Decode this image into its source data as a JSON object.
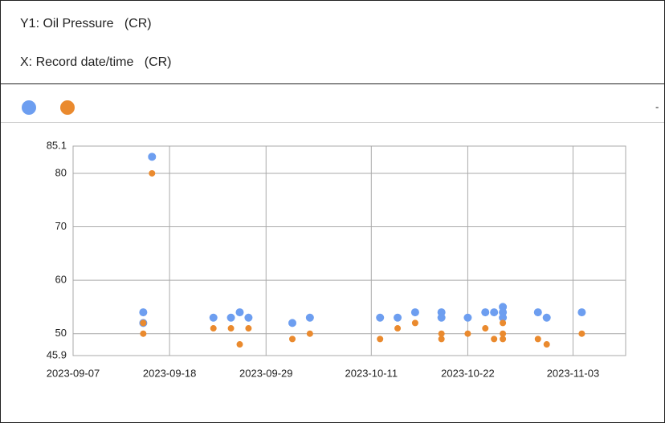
{
  "header": {
    "y_label": "Y1: Oil Pressure   (CR)",
    "x_label": "X: Record date/time   (CR)"
  },
  "legend_menu": "-",
  "chart_data": {
    "type": "scatter",
    "series": [
      {
        "color": "#6d9ef0",
        "x": [
          "2023-09-16",
          "2023-09-15",
          "2023-09-15",
          "2023-09-23",
          "2023-09-25",
          "2023-09-26",
          "2023-09-27",
          "2023-10-02",
          "2023-10-04",
          "2023-10-12",
          "2023-10-14",
          "2023-10-16",
          "2023-10-19",
          "2023-10-19",
          "2023-10-22",
          "2023-10-24",
          "2023-10-25",
          "2023-10-26",
          "2023-10-26",
          "2023-10-26",
          "2023-10-30",
          "2023-10-31",
          "2023-11-04"
        ],
        "values": [
          83.1,
          54,
          52,
          53,
          53,
          54,
          53,
          52,
          53,
          53,
          53,
          54,
          54,
          53,
          53,
          54,
          54,
          55,
          54,
          53,
          54,
          53,
          54
        ]
      },
      {
        "color": "#ea8a2e",
        "x": [
          "2023-09-16",
          "2023-09-15",
          "2023-09-15",
          "2023-09-23",
          "2023-09-25",
          "2023-09-26",
          "2023-09-27",
          "2023-10-02",
          "2023-10-04",
          "2023-10-12",
          "2023-10-14",
          "2023-10-16",
          "2023-10-19",
          "2023-10-19",
          "2023-10-22",
          "2023-10-24",
          "2023-10-25",
          "2023-10-26",
          "2023-10-26",
          "2023-10-26",
          "2023-10-30",
          "2023-10-31",
          "2023-11-04"
        ],
        "values": [
          80,
          52,
          50,
          51,
          51,
          48,
          51,
          49,
          50,
          49,
          51,
          52,
          50,
          49,
          50,
          51,
          49,
          50,
          52,
          49,
          49,
          48,
          50
        ]
      }
    ],
    "xlim": [
      "2023-09-07",
      "2023-11-09"
    ],
    "xticks": [
      "2023-09-07",
      "2023-09-18",
      "2023-09-29",
      "2023-10-11",
      "2023-10-22",
      "2023-11-03"
    ],
    "ylim": [
      45.9,
      85.1
    ],
    "yticks": [
      45.9,
      50,
      60,
      70,
      80,
      85.1
    ],
    "grid": true
  }
}
